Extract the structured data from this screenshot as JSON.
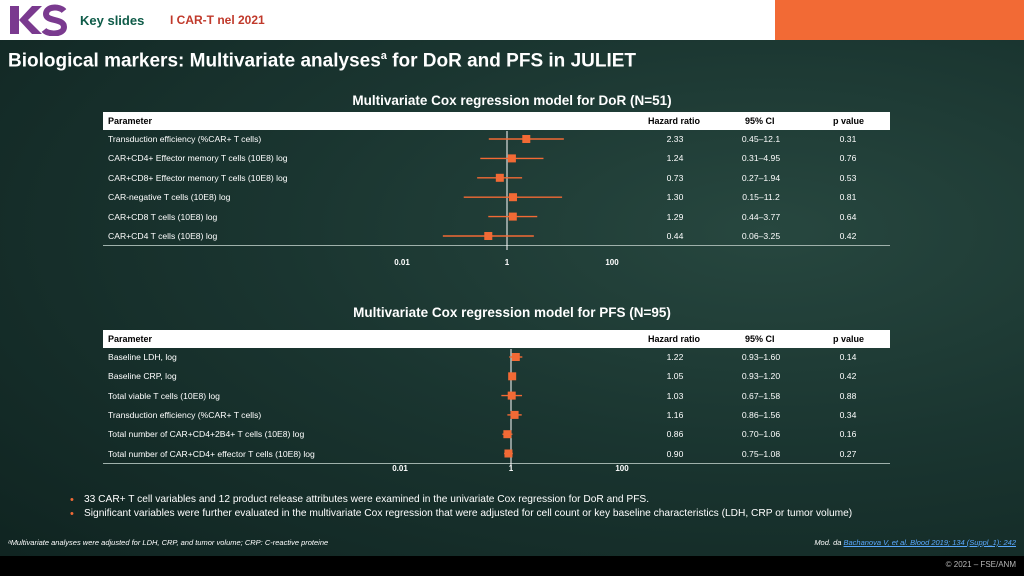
{
  "header": {
    "logo_text": "KS",
    "label": "Key slides",
    "topic": "I CAR-T nel 2021"
  },
  "title": {
    "main": "Biological markers: Multivariate analyses",
    "sup": "a",
    "rest": " for DoR and PFS in JULIET"
  },
  "colors": {
    "accent": "#f26a35",
    "brand_green": "#0e5b48",
    "background": "#1a3530",
    "marker": "#f26a35"
  },
  "columns": {
    "parameter": "Parameter",
    "hr": "Hazard ratio",
    "ci": "95% CI",
    "p": "p value"
  },
  "chart_data": [
    {
      "type": "forest",
      "title": "Multivariate Cox regression model for DoR (N=51)",
      "x_scale": "log",
      "x_ticks": [
        "0.01",
        "1",
        "100"
      ],
      "rows": [
        {
          "label": "Transduction efficiency (%CAR+ T cells)",
          "hr": 2.33,
          "lo": 0.45,
          "hi": 12.1,
          "hr_text": "2.33",
          "ci_text": "0.45–12.1",
          "p_text": "0.31"
        },
        {
          "label": "CAR+CD4+ Effector memory T cells (10E8) log",
          "hr": 1.24,
          "lo": 0.31,
          "hi": 4.95,
          "hr_text": "1.24",
          "ci_text": "0.31–4.95",
          "p_text": "0.76"
        },
        {
          "label": "CAR+CD8+ Effector memory T cells (10E8) log",
          "hr": 0.73,
          "lo": 0.27,
          "hi": 1.94,
          "hr_text": "0.73",
          "ci_text": "0.27–1.94",
          "p_text": "0.53"
        },
        {
          "label": "CAR-negative T cells (10E8) log",
          "hr": 1.3,
          "lo": 0.15,
          "hi": 11.2,
          "hr_text": "1.30",
          "ci_text": "0.15–11.2",
          "p_text": "0.81"
        },
        {
          "label": "CAR+CD8 T cells (10E8) log",
          "hr": 1.29,
          "lo": 0.44,
          "hi": 3.77,
          "hr_text": "1.29",
          "ci_text": "0.44–3.77",
          "p_text": "0.64"
        },
        {
          "label": "CAR+CD4 T cells (10E8) log",
          "hr": 0.44,
          "lo": 0.06,
          "hi": 3.25,
          "hr_text": "0.44",
          "ci_text": "0.06–3.25",
          "p_text": "0.42"
        }
      ]
    },
    {
      "type": "forest",
      "title": "Multivariate Cox regression model for PFS (N=95)",
      "x_scale": "log",
      "x_ticks": [
        "0.01",
        "1",
        "100"
      ],
      "rows": [
        {
          "label": "Baseline LDH, log",
          "hr": 1.22,
          "lo": 0.93,
          "hi": 1.6,
          "hr_text": "1.22",
          "ci_text": "0.93–1.60",
          "p_text": "0.14"
        },
        {
          "label": "Baseline CRP, log",
          "hr": 1.05,
          "lo": 0.93,
          "hi": 1.2,
          "hr_text": "1.05",
          "ci_text": "0.93–1.20",
          "p_text": "0.42"
        },
        {
          "label": "Total viable T cells (10E8) log",
          "hr": 1.03,
          "lo": 0.67,
          "hi": 1.58,
          "hr_text": "1.03",
          "ci_text": "0.67–1.58",
          "p_text": "0.88"
        },
        {
          "label": "Transduction efficiency (%CAR+ T cells)",
          "hr": 1.16,
          "lo": 0.86,
          "hi": 1.56,
          "hr_text": "1.16",
          "ci_text": "0.86–1.56",
          "p_text": "0.34"
        },
        {
          "label": "Total number of CAR+CD4+2B4+ T cells  (10E8) log",
          "hr": 0.86,
          "lo": 0.7,
          "hi": 1.06,
          "hr_text": "0.86",
          "ci_text": "0.70–1.06",
          "p_text": "0.16"
        },
        {
          "label": "Total number of CAR+CD4+ effector T cells  (10E8) log",
          "hr": 0.9,
          "lo": 0.75,
          "hi": 1.08,
          "hr_text": "0.90",
          "ci_text": "0.75–1.08",
          "p_text": "0.27"
        }
      ]
    }
  ],
  "bullets": [
    "33 CAR+ T cell variables and 12 product release attributes were examined in the univariate Cox regression for DoR and PFS.",
    "Significant variables were further evaluated in the multivariate Cox regression that were adjusted for cell count or key baseline characteristics (LDH, CRP or tumor volume)"
  ],
  "footnote": "ᵃMultivariate analyses were adjusted for LDH, CRP, and tumor volume; CRP: C-reactive proteine",
  "source": {
    "prefix": "Mod. da ",
    "link": "Bachanova V, et al. Blood 2019; 134 (Suppl_1): 242"
  },
  "copyright": "© 2021 – FSE/ANM"
}
